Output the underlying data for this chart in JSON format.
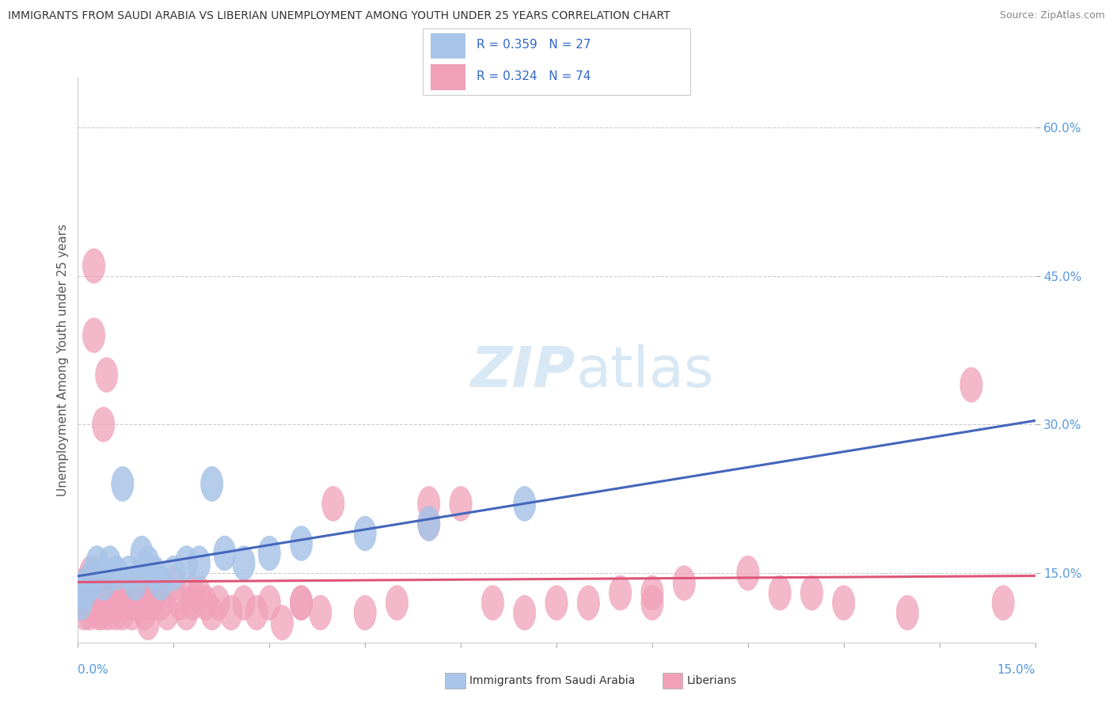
{
  "title": "IMMIGRANTS FROM SAUDI ARABIA VS LIBERIAN UNEMPLOYMENT AMONG YOUTH UNDER 25 YEARS CORRELATION CHART",
  "source": "Source: ZipAtlas.com",
  "ylabel": "Unemployment Among Youth under 25 years",
  "xlim": [
    0.0,
    15.0
  ],
  "ylim": [
    8.0,
    65.0
  ],
  "ytick_vals": [
    15.0,
    30.0,
    45.0,
    60.0
  ],
  "r_saudi": 0.359,
  "n_saudi": 27,
  "r_liberian": 0.324,
  "n_liberian": 74,
  "color_saudi": "#a8c4e8",
  "color_liberian": "#f0a0b8",
  "line_saudi_color": "#4466bb",
  "line_liberian_color": "#dd5577",
  "line_dashed_color": "#aabbcc",
  "watermark_color": "#d8e8f4",
  "background_color": "#ffffff",
  "saudi_x": [
    0.05,
    0.1,
    0.15,
    0.2,
    0.25,
    0.3,
    0.4,
    0.5,
    0.6,
    0.7,
    0.8,
    0.9,
    1.0,
    1.1,
    1.2,
    1.3,
    1.5,
    1.7,
    1.9,
    2.1,
    2.3,
    2.6,
    3.0,
    3.5,
    4.5,
    5.5,
    7.0
  ],
  "saudi_y": [
    12,
    13,
    14,
    14,
    15,
    16,
    14,
    16,
    15,
    24,
    15,
    14,
    17,
    16,
    15,
    14,
    15,
    16,
    16,
    24,
    17,
    16,
    17,
    18,
    19,
    20,
    22
  ],
  "liberian_x": [
    0.05,
    0.08,
    0.1,
    0.12,
    0.15,
    0.18,
    0.2,
    0.22,
    0.25,
    0.28,
    0.3,
    0.32,
    0.35,
    0.38,
    0.4,
    0.42,
    0.45,
    0.48,
    0.5,
    0.55,
    0.6,
    0.65,
    0.7,
    0.75,
    0.8,
    0.85,
    0.9,
    0.95,
    1.0,
    1.05,
    1.1,
    1.15,
    1.2,
    1.3,
    1.4,
    1.5,
    1.6,
    1.7,
    1.8,
    1.9,
    2.0,
    2.1,
    2.2,
    2.4,
    2.6,
    2.8,
    3.0,
    3.2,
    3.5,
    3.8,
    4.0,
    4.5,
    5.0,
    5.5,
    6.0,
    6.5,
    7.0,
    7.5,
    8.0,
    8.5,
    9.0,
    9.5,
    10.5,
    11.0,
    12.0,
    13.0,
    14.0,
    14.5,
    0.25,
    1.8,
    3.5,
    5.5,
    9.0,
    11.5
  ],
  "liberian_y": [
    12,
    13,
    11,
    14,
    12,
    11,
    15,
    12,
    46,
    13,
    12,
    11,
    13,
    11,
    30,
    12,
    35,
    11,
    12,
    13,
    11,
    12,
    11,
    13,
    12,
    11,
    12,
    13,
    12,
    11,
    10,
    12,
    13,
    12,
    11,
    14,
    12,
    11,
    12,
    13,
    12,
    11,
    12,
    11,
    12,
    11,
    12,
    10,
    12,
    11,
    22,
    11,
    12,
    22,
    22,
    12,
    11,
    12,
    12,
    13,
    13,
    14,
    15,
    13,
    12,
    11,
    34,
    12,
    39,
    13,
    12,
    20,
    12,
    13
  ]
}
